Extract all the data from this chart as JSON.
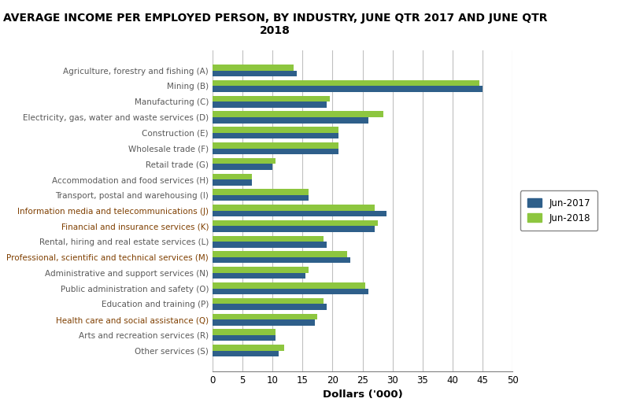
{
  "title": "AVERAGE INCOME PER EMPLOYED PERSON, BY INDUSTRY, JUNE QTR 2017 AND JUNE QTR\n2018",
  "categories": [
    "Agriculture, forestry and fishing (A)",
    "Mining (B)",
    "Manufacturing (C)",
    "Electricity, gas, water and waste services (D)",
    "Construction (E)",
    "Wholesale trade (F)",
    "Retail trade (G)",
    "Accommodation and food services (H)",
    "Transport, postal and warehousing (I)",
    "Information media and telecommunications (J)",
    "Financial and insurance services (K)",
    "Rental, hiring and real estate services (L)",
    "Professional, scientific and technical services (M)",
    "Administrative and support services (N)",
    "Public administration and safety (O)",
    "Education and training (P)",
    "Health care and social assistance (Q)",
    "Arts and recreation services (R)",
    "Other services (S)"
  ],
  "jun2017": [
    14,
    45,
    19,
    26,
    21,
    21,
    10,
    6.5,
    16,
    29,
    27,
    19,
    23,
    15.5,
    26,
    19,
    17,
    10.5,
    11
  ],
  "jun2018": [
    13.5,
    44.5,
    19.5,
    28.5,
    21,
    21,
    10.5,
    6.5,
    16,
    27,
    27.5,
    18.5,
    22.5,
    16,
    25.5,
    18.5,
    17.5,
    10.5,
    12
  ],
  "color_2017": "#2E5F8A",
  "color_2018": "#8DC63F",
  "xlabel": "Dollars ('000)",
  "xlim": [
    0,
    50
  ],
  "xticks": [
    0,
    5,
    10,
    15,
    20,
    25,
    30,
    35,
    40,
    45,
    50
  ],
  "legend_2017": "Jun-2017",
  "legend_2018": "Jun-2018",
  "title_fontsize": 10,
  "label_fontsize": 7.5,
  "tick_fontsize": 8.5,
  "xlabel_fontsize": 9.5,
  "label_color_normal": "#595959",
  "label_color_highlight": "#7F3F00",
  "bar_height": 0.38
}
